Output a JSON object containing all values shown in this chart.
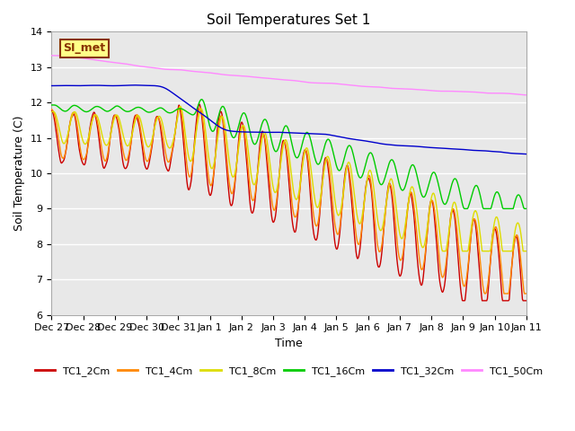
{
  "title": "Soil Temperatures Set 1",
  "xlabel": "Time",
  "ylabel": "Soil Temperature (C)",
  "ylim": [
    6.0,
    14.0
  ],
  "yticks": [
    6.0,
    7.0,
    8.0,
    9.0,
    10.0,
    11.0,
    12.0,
    13.0,
    14.0
  ],
  "x_tick_labels": [
    "Dec 27",
    "Dec 28",
    "Dec 29",
    "Dec 30",
    "Dec 31",
    "Jan 1",
    "Jan 2",
    "Jan 3",
    "Jan 4",
    "Jan 5",
    "Jan 6",
    "Jan 7",
    "Jan 8",
    "Jan 9",
    "Jan 10",
    "Jan 11"
  ],
  "series_colors": [
    "#cc0000",
    "#ff8800",
    "#dddd00",
    "#00cc00",
    "#0000cc",
    "#ff88ff"
  ],
  "series_labels": [
    "TC1_2Cm",
    "TC1_4Cm",
    "TC1_8Cm",
    "TC1_16Cm",
    "TC1_32Cm",
    "TC1_50Cm"
  ],
  "annotation_text": "SI_met",
  "annotation_bg": "#ffff88",
  "annotation_border": "#883300",
  "background_color": "#e8e8e8",
  "grid_color": "#ffffff",
  "linewidth": 1.0
}
